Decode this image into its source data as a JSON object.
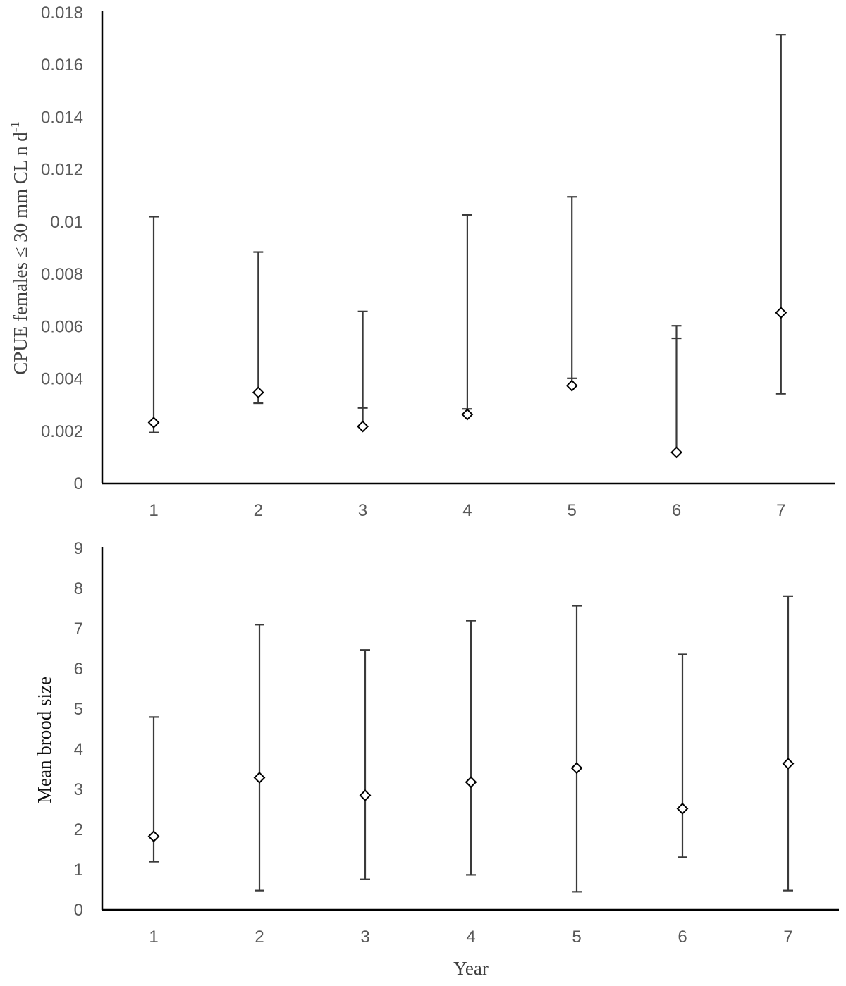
{
  "chart_data": [
    {
      "type": "scatter",
      "title": "",
      "xlabel": "",
      "ylabel": "CPUE females ≤ 30 mm CL n d",
      "ylabel_superscript": "-1",
      "categories": [
        "1",
        "2",
        "3",
        "4",
        "5",
        "6",
        "7"
      ],
      "ylim": [
        0,
        0.018
      ],
      "yticks": [
        "0",
        "0.002",
        "0.004",
        "0.006",
        "0.008",
        "0.01",
        "0.012",
        "0.014",
        "0.016",
        "0.018"
      ],
      "ytick_values": [
        0,
        0.002,
        0.004,
        0.006,
        0.008,
        0.01,
        0.012,
        0.014,
        0.016,
        0.018
      ],
      "grid": false,
      "marker": "open-diamond",
      "series": [
        {
          "values": [
            0.00233,
            0.00348,
            0.00218,
            0.00264,
            0.00374,
            0.00119,
            0.00653
          ],
          "upper": [
            0.0102,
            0.00885,
            0.00658,
            0.01027,
            0.01096,
            0.00603,
            0.01716
          ],
          "lower": [
            0.00195,
            0.00307,
            0.00289,
            0.00285,
            0.00402,
            0.00555,
            0.00343
          ]
        }
      ]
    },
    {
      "type": "scatter",
      "title": "",
      "xlabel": "Year",
      "ylabel": "Mean brood size",
      "categories": [
        "1",
        "2",
        "3",
        "4",
        "5",
        "6",
        "7"
      ],
      "ylim": [
        0,
        9
      ],
      "yticks": [
        "0",
        "1",
        "2",
        "3",
        "4",
        "5",
        "6",
        "7",
        "8",
        "9"
      ],
      "ytick_values": [
        0,
        1,
        2,
        3,
        4,
        5,
        6,
        7,
        8,
        9
      ],
      "grid": false,
      "marker": "open-diamond",
      "series": [
        {
          "values": [
            1.83,
            3.29,
            2.85,
            3.18,
            3.53,
            2.52,
            3.64
          ],
          "upper": [
            4.8,
            7.1,
            6.47,
            7.2,
            7.57,
            6.36,
            7.81
          ],
          "lower": [
            1.2,
            0.48,
            0.76,
            0.87,
            0.45,
            1.31,
            0.48
          ]
        }
      ]
    }
  ]
}
